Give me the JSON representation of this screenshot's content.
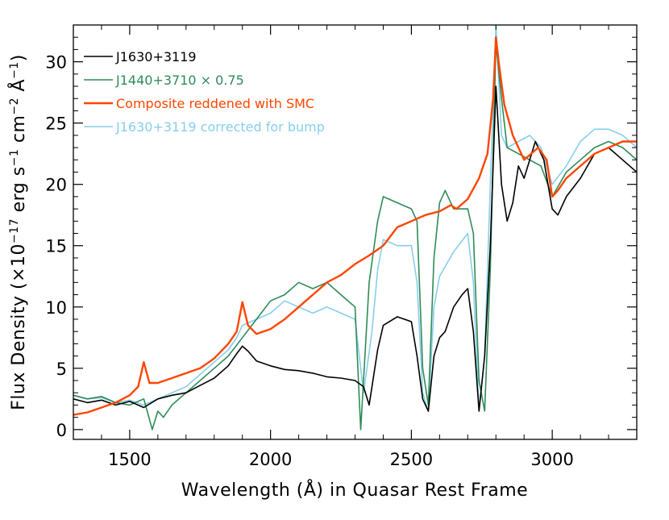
{
  "chart_data": {
    "type": "line",
    "xlabel": "Wavelength (Å) in Quasar Rest Frame",
    "ylabel": "Flux Density (×10",
    "ylabel_exp": "−17",
    "ylabel_mid1": " erg s",
    "ylabel_exp2": "−1",
    "ylabel_mid2": " cm",
    "ylabel_exp3": "−2",
    "ylabel_mid3": " Å",
    "ylabel_exp4": "−1",
    "ylabel_end": ")",
    "xlim": [
      1300,
      3300
    ],
    "ylim": [
      -0.8,
      33
    ],
    "x_ticks": [
      1500,
      2000,
      2500,
      3000
    ],
    "y_ticks": [
      0,
      5,
      10,
      15,
      20,
      25,
      30
    ],
    "legend_position": "top-left",
    "colors": {
      "black": "#000000",
      "green": "#2e8b57",
      "orange": "#ff4500",
      "lightblue": "#87ceeb"
    },
    "series": [
      {
        "name": "J1630+3119",
        "color": "#000000",
        "x": [
          1300,
          1350,
          1400,
          1450,
          1500,
          1550,
          1600,
          1650,
          1700,
          1750,
          1800,
          1850,
          1880,
          1900,
          1920,
          1950,
          2000,
          2050,
          2100,
          2150,
          2200,
          2250,
          2300,
          2330,
          2350,
          2380,
          2400,
          2450,
          2500,
          2520,
          2540,
          2560,
          2580,
          2600,
          2620,
          2650,
          2680,
          2700,
          2720,
          2740,
          2760,
          2780,
          2800,
          2820,
          2840,
          2860,
          2880,
          2900,
          2940,
          2970,
          3000,
          3020,
          3050,
          3100,
          3150,
          3200,
          3250,
          3300
        ],
        "y": [
          2.5,
          2.2,
          2.4,
          2.0,
          2.3,
          1.8,
          2.5,
          2.8,
          3.0,
          3.6,
          4.2,
          5.2,
          6.2,
          6.8,
          6.4,
          5.6,
          5.2,
          4.9,
          4.8,
          4.6,
          4.3,
          4.2,
          4.0,
          3.5,
          2.0,
          6.5,
          8.5,
          9.2,
          8.8,
          6.0,
          2.5,
          1.5,
          6.0,
          7.5,
          8.0,
          10.0,
          11.0,
          11.5,
          8.0,
          1.5,
          6.0,
          15.0,
          28.0,
          20.0,
          17.0,
          18.5,
          21.5,
          20.5,
          23.5,
          22.0,
          18.0,
          17.5,
          19.0,
          20.5,
          22.5,
          23.0,
          22.0,
          21.0
        ]
      },
      {
        "name": "J1440+3710 × 0.75",
        "color": "#2e8b57",
        "x": [
          1300,
          1350,
          1400,
          1450,
          1500,
          1550,
          1580,
          1600,
          1620,
          1650,
          1700,
          1750,
          1800,
          1850,
          1900,
          1950,
          2000,
          2050,
          2100,
          2150,
          2200,
          2250,
          2300,
          2320,
          2350,
          2380,
          2400,
          2450,
          2500,
          2520,
          2540,
          2560,
          2580,
          2600,
          2620,
          2650,
          2700,
          2720,
          2740,
          2760,
          2780,
          2800,
          2820,
          2840,
          2880,
          2920,
          2960,
          3000,
          3050,
          3100,
          3150,
          3200,
          3250,
          3300
        ],
        "y": [
          2.8,
          2.5,
          2.7,
          2.2,
          2.0,
          2.5,
          0.0,
          1.5,
          1.0,
          2.0,
          3.0,
          4.0,
          5.0,
          6.0,
          7.5,
          9.0,
          10.5,
          11.0,
          12.0,
          11.5,
          12.0,
          11.0,
          10.0,
          0.0,
          12.0,
          17.0,
          19.0,
          18.5,
          18.0,
          17.0,
          5.0,
          2.0,
          14.0,
          18.5,
          19.5,
          18.0,
          18.0,
          16.0,
          4.0,
          1.5,
          13.0,
          31.5,
          27.0,
          23.0,
          22.5,
          22.0,
          21.5,
          19.0,
          21.0,
          22.0,
          23.0,
          23.5,
          23.0,
          22.0
        ]
      },
      {
        "name": "Composite reddened with SMC",
        "color": "#ff4500",
        "x": [
          1300,
          1350,
          1400,
          1450,
          1500,
          1530,
          1550,
          1570,
          1600,
          1650,
          1700,
          1750,
          1800,
          1850,
          1880,
          1900,
          1920,
          1950,
          2000,
          2050,
          2100,
          2150,
          2200,
          2250,
          2300,
          2350,
          2400,
          2450,
          2500,
          2550,
          2600,
          2640,
          2660,
          2700,
          2740,
          2770,
          2790,
          2800,
          2810,
          2830,
          2860,
          2900,
          2950,
          2980,
          3000,
          3020,
          3050,
          3100,
          3150,
          3200,
          3250,
          3300
        ],
        "y": [
          1.2,
          1.4,
          1.8,
          2.2,
          2.8,
          3.5,
          5.5,
          3.8,
          3.8,
          4.2,
          4.6,
          5.0,
          5.8,
          7.0,
          8.0,
          10.4,
          8.5,
          7.8,
          8.2,
          9.0,
          10.0,
          11.0,
          12.0,
          12.6,
          13.5,
          14.2,
          15.0,
          16.5,
          17.0,
          17.5,
          17.8,
          18.3,
          18.0,
          18.8,
          20.5,
          22.5,
          27.0,
          32.0,
          30.0,
          26.5,
          24.0,
          22.0,
          23.0,
          22.0,
          19.0,
          19.5,
          20.5,
          21.5,
          22.5,
          23.0,
          23.5,
          23.5
        ]
      },
      {
        "name": "J1630+3119 corrected for bump",
        "color": "#87ceeb",
        "x": [
          1300,
          1350,
          1400,
          1450,
          1500,
          1550,
          1600,
          1650,
          1700,
          1750,
          1800,
          1850,
          1880,
          1900,
          1950,
          2000,
          2050,
          2100,
          2150,
          2200,
          2250,
          2300,
          2330,
          2360,
          2380,
          2400,
          2450,
          2500,
          2520,
          2540,
          2560,
          2580,
          2600,
          2650,
          2700,
          2720,
          2740,
          2760,
          2780,
          2800,
          2820,
          2840,
          2880,
          2920,
          2960,
          3000,
          3050,
          3100,
          3150,
          3200,
          3250,
          3300
        ],
        "y": [
          2.8,
          2.5,
          2.6,
          2.2,
          2.4,
          2.0,
          2.5,
          3.0,
          3.5,
          4.5,
          5.5,
          6.5,
          7.5,
          8.5,
          9.0,
          9.5,
          10.5,
          10.0,
          9.5,
          10.0,
          9.5,
          9.0,
          3.0,
          8.0,
          13.0,
          15.5,
          15.0,
          15.0,
          12.0,
          3.0,
          1.5,
          10.0,
          12.5,
          14.5,
          16.0,
          12.0,
          1.5,
          6.0,
          20.0,
          33.0,
          24.0,
          23.0,
          23.5,
          24.0,
          23.0,
          20.0,
          21.5,
          23.5,
          24.5,
          24.5,
          24.0,
          23.0
        ]
      }
    ],
    "draw_order": [
      3,
      1,
      0,
      2
    ]
  }
}
